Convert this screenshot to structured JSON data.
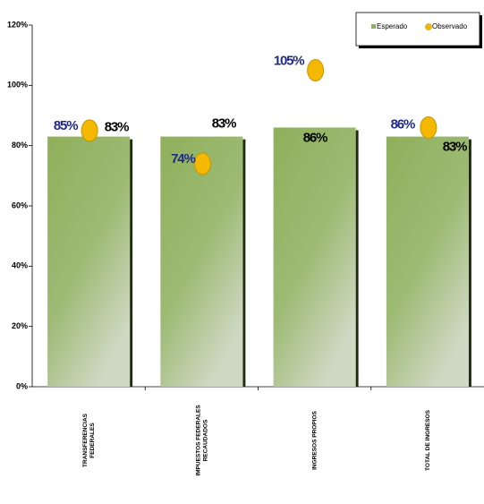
{
  "chart_data": {
    "type": "bar",
    "categories": [
      [
        "TRANSFERENCIAS",
        "FEDERALES"
      ],
      [
        "IMPUESTOS FEDERALES",
        "RECAUDADOS"
      ],
      [
        "INGRESOS PROPIOS"
      ],
      [
        "TOTAL DE INGRESOS"
      ]
    ],
    "series": [
      {
        "name": "Esperado",
        "color": "#8fb05b",
        "values": [
          83,
          83,
          86,
          83
        ],
        "value_labels": [
          "83%",
          "83%",
          "86%",
          "83%"
        ]
      },
      {
        "name": "Observado",
        "color": "#f5b800",
        "values": [
          85,
          74,
          105,
          86
        ],
        "value_labels": [
          "85%",
          "74%",
          "105%",
          "86%"
        ]
      }
    ],
    "ylim": [
      0,
      120
    ],
    "yticks": [
      {
        "value": 0,
        "label": "0%"
      },
      {
        "value": 20,
        "label": "20%"
      },
      {
        "value": 40,
        "label": "40%"
      },
      {
        "value": 60,
        "label": "60%"
      },
      {
        "value": 80,
        "label": "80%"
      },
      {
        "value": 100,
        "label": "100%"
      },
      {
        "value": 120,
        "label": "120%"
      }
    ],
    "legend": "top-right"
  }
}
